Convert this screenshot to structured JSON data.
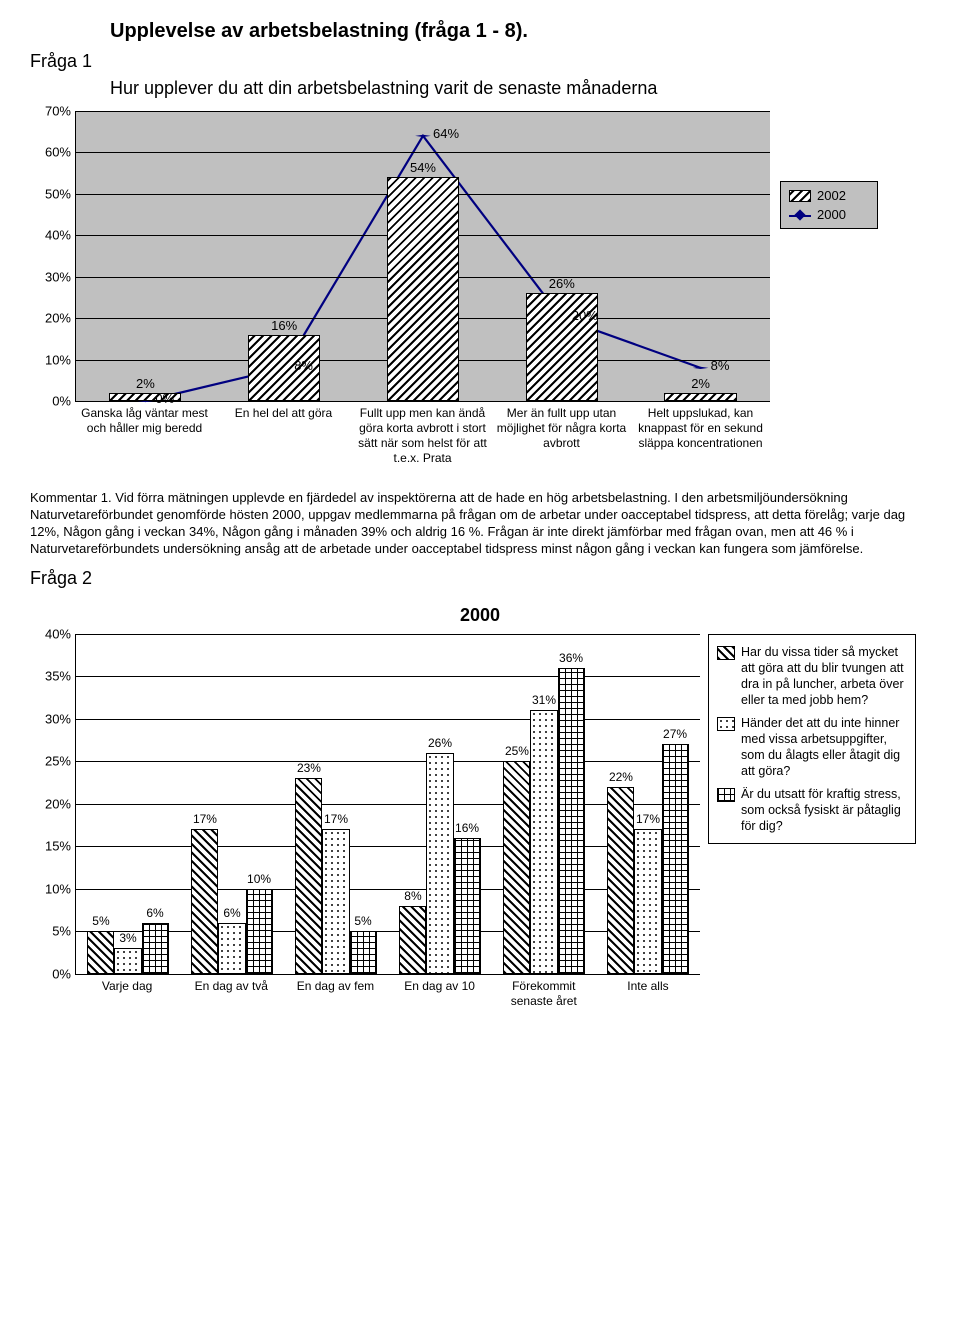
{
  "doc_title": "Upplevelse av arbetsbelastning (fråga 1 - 8).",
  "chart1": {
    "fraga_label": "Fråga 1",
    "subtitle": "Hur upplever du att din arbetsbelastning varit de senaste månaderna",
    "ymax": 70,
    "ytick_step": 10,
    "yticks": [
      "0%",
      "10%",
      "20%",
      "30%",
      "40%",
      "50%",
      "60%",
      "70%"
    ],
    "bg_color": "#c0c0c0",
    "line_color": "#000080",
    "categories": [
      "Ganska låg väntar mest och håller mig beredd",
      "En hel del att göra",
      "Fullt upp men kan ändå göra korta avbrott i stort sätt när som helst för att t.e.x. Prata",
      "Mer än fullt upp utan möjlighet för några korta avbrott",
      "Helt uppslukad, kan knappast för en sekund släppa koncentrationen"
    ],
    "series_bar": {
      "name": "2002",
      "values": [
        2,
        16,
        54,
        26,
        2
      ]
    },
    "series_line": {
      "name": "2000",
      "values": [
        0,
        8,
        64,
        20,
        8
      ]
    },
    "bar_labels": [
      "2%",
      "16%",
      "54%",
      "26%",
      "2%"
    ],
    "line_labels": [
      "0%",
      "8%",
      "64%",
      "20%",
      "8%"
    ]
  },
  "commentary": "Kommentar 1. Vid förra mätningen upplevde en fjärdedel av inspektörerna att de hade en hög arbetsbelastning. I den arbetsmiljöundersökning Naturvetareförbundet genomförde hösten 2000, uppgav medlemmarna på frågan om de arbetar under oacceptabel tidspress, att detta förelåg; varje dag 12%, Någon gång i veckan 34%, Någon gång i månaden 39% och aldrig 16 %. Frågan är inte direkt jämförbar med frågan ovan, men att 46 % i Naturvetareförbundets undersökning ansåg att de arbetade under oacceptabel tidspress minst någon gång i veckan kan fungera som jämförelse.",
  "chart2": {
    "fraga_label": "Fråga 2",
    "title": "2000",
    "ymax": 40,
    "ytick_step": 5,
    "yticks": [
      "0%",
      "5%",
      "10%",
      "15%",
      "20%",
      "25%",
      "30%",
      "35%",
      "40%"
    ],
    "bg_color": "#ffffff",
    "categories": [
      "Varje dag",
      "En dag av två",
      "En dag av fem",
      "En dag av 10",
      "Förekommit senaste året",
      "Inte alls"
    ],
    "series": [
      {
        "name": "A",
        "values": [
          5,
          17,
          23,
          8,
          25,
          22
        ],
        "labels": [
          "5%",
          "17%",
          "23%",
          "8%",
          "25%",
          "22%"
        ],
        "pattern": "pat-a",
        "legend": "Har du vissa tider så mycket att göra att du blir tvungen att dra in på luncher, arbeta över eller ta med jobb hem?"
      },
      {
        "name": "B",
        "values": [
          3,
          6,
          17,
          26,
          31,
          17
        ],
        "labels": [
          "3%",
          "6%",
          "17%",
          "26%",
          "31%",
          "17%"
        ],
        "pattern": "pat-b",
        "legend": "Händer det att du inte hinner med vissa arbetsuppgifter, som du ålagts eller åtagit dig att göra?"
      },
      {
        "name": "C",
        "values": [
          6,
          10,
          5,
          16,
          36,
          27
        ],
        "labels": [
          "6%",
          "10%",
          "5%",
          "16%",
          "36%",
          "27%"
        ],
        "pattern": "pat-c",
        "legend": "Är du utsatt för kraftig stress, som också fysiskt är påtaglig för dig?"
      }
    ]
  }
}
